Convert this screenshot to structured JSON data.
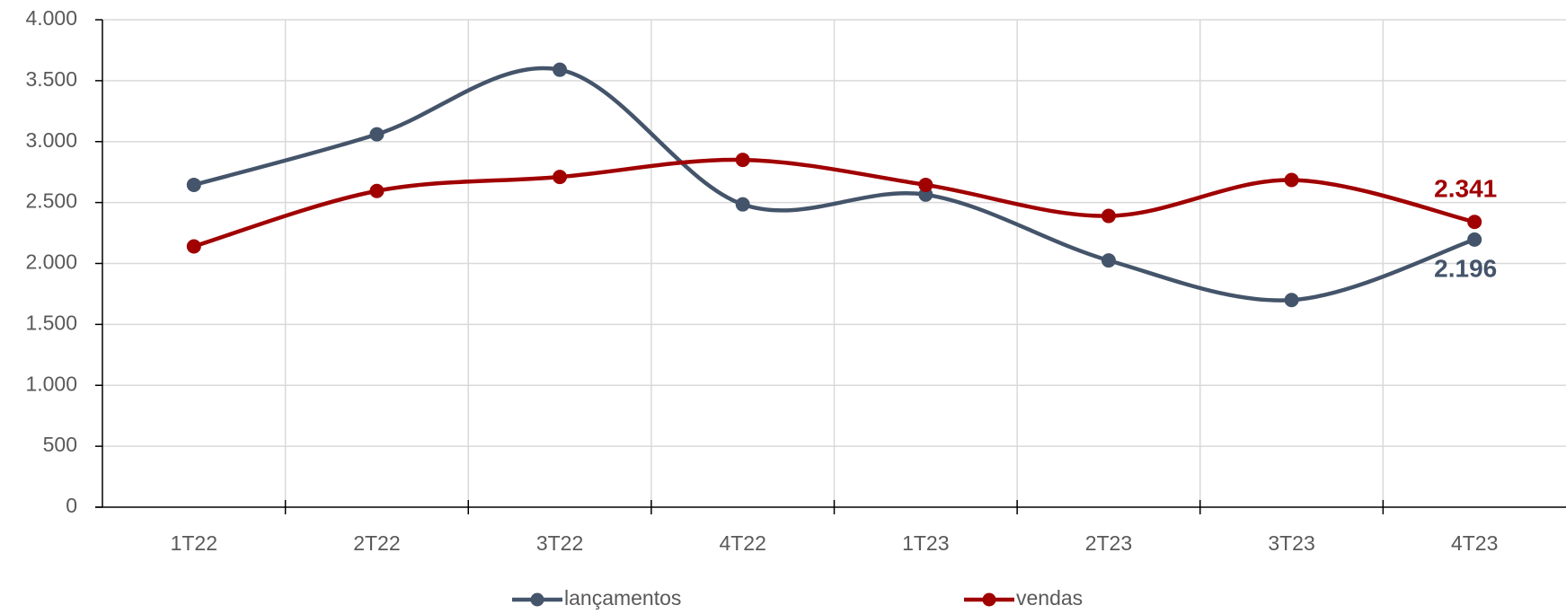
{
  "chart_data": {
    "type": "line",
    "categories": [
      "1T22",
      "2T22",
      "3T22",
      "4T22",
      "1T23",
      "2T23",
      "3T23",
      "4T23"
    ],
    "series": [
      {
        "name": "lançamentos",
        "color": "#44546a",
        "values": [
          2645,
          3060,
          3590,
          2485,
          2565,
          2025,
          1700,
          2196
        ],
        "value_labels": [
          null,
          null,
          null,
          null,
          null,
          null,
          null,
          "2.196"
        ]
      },
      {
        "name": "vendas",
        "color": "#a00000",
        "values": [
          2140,
          2595,
          2710,
          2850,
          2645,
          2390,
          2685,
          2341
        ],
        "value_labels": [
          null,
          null,
          null,
          null,
          null,
          null,
          null,
          "2.341"
        ]
      }
    ],
    "ylim": [
      0,
      4000
    ],
    "yticks": [
      {
        "value": 0,
        "label": "0"
      },
      {
        "value": 500,
        "label": "500"
      },
      {
        "value": 1000,
        "label": "1.000"
      },
      {
        "value": 1500,
        "label": "1.500"
      },
      {
        "value": 2000,
        "label": "2.000"
      },
      {
        "value": 2500,
        "label": "2.500"
      },
      {
        "value": 3000,
        "label": "3.000"
      },
      {
        "value": 3500,
        "label": "3.500"
      },
      {
        "value": 4000,
        "label": "4.000"
      }
    ],
    "grid": true,
    "smooth": true,
    "legend": "bottom"
  }
}
